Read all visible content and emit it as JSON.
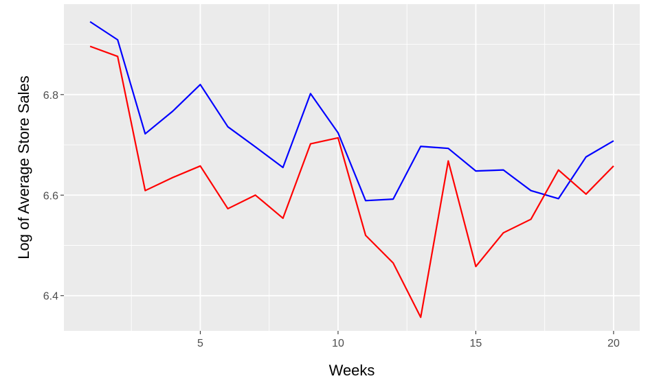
{
  "chart_data": {
    "type": "line",
    "title": "",
    "xlabel": "Weeks",
    "ylabel": "Log of Average Store Sales",
    "xlim": [
      0.05,
      20.95
    ],
    "ylim": [
      6.33,
      6.98
    ],
    "x_ticks": [
      5,
      10,
      15,
      20
    ],
    "x_tick_labels": [
      "5",
      "10",
      "15",
      "20"
    ],
    "y_ticks": [
      6.4,
      6.6,
      6.8
    ],
    "y_tick_labels": [
      "6.4",
      "6.6",
      "6.8"
    ],
    "grid": true,
    "legend": "none",
    "x": [
      1,
      2,
      3,
      4,
      5,
      6,
      7,
      8,
      9,
      10,
      11,
      12,
      13,
      14,
      15,
      16,
      17,
      18,
      19,
      20
    ],
    "series": [
      {
        "color": "#0000ff",
        "values": [
          6.945,
          6.909,
          6.722,
          6.767,
          6.82,
          6.736,
          6.696,
          6.655,
          6.802,
          6.724,
          6.589,
          6.592,
          6.697,
          6.693,
          6.648,
          6.65,
          6.609,
          6.593,
          6.676,
          6.708
        ]
      },
      {
        "color": "#ff0000",
        "values": [
          6.896,
          6.876,
          6.609,
          6.635,
          6.658,
          6.573,
          6.6,
          6.554,
          6.702,
          6.714,
          6.52,
          6.465,
          6.357,
          6.668,
          6.458,
          6.525,
          6.552,
          6.65,
          6.602,
          6.658
        ]
      }
    ]
  }
}
